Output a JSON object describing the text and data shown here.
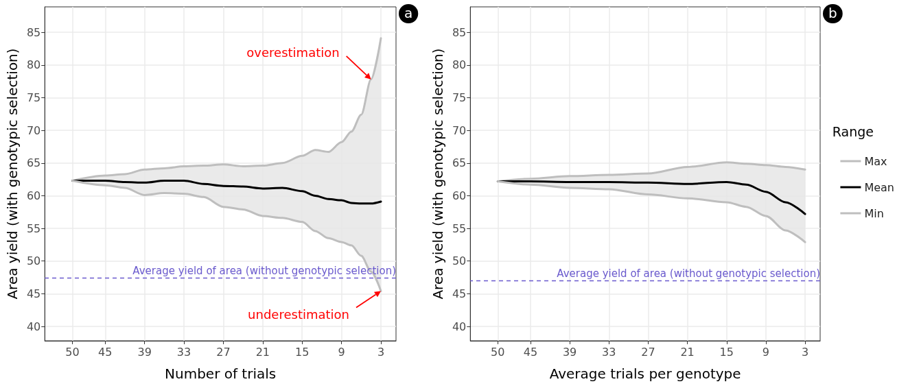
{
  "chart_data": [
    {
      "type": "line",
      "xlabel": "Number of trials",
      "ylabel": "Area yield (with genotypic selection)",
      "x": [
        50,
        45,
        42,
        39,
        36,
        33,
        30,
        27,
        24,
        21,
        18,
        15,
        13,
        11,
        9,
        7.5,
        6,
        4.5,
        3
      ],
      "series": [
        {
          "color": "#bebebe",
          "values": [
            62.3,
            63.1,
            63.3,
            64.0,
            64.2,
            64.5,
            64.6,
            64.8,
            64.5,
            64.6,
            65.0,
            66.1,
            67.0,
            66.7,
            68.2,
            69.8,
            72.4,
            77.8,
            84.1
          ]
        },
        {
          "color": "#000000",
          "values": [
            62.3,
            62.3,
            62.1,
            62.0,
            62.3,
            62.3,
            61.8,
            61.5,
            61.4,
            61.1,
            61.2,
            60.7,
            60.0,
            59.5,
            59.3,
            58.9,
            58.8,
            58.8,
            59.1
          ],
          "lower": [
            62.3,
            61.6,
            61.2,
            60.1,
            60.4,
            60.3,
            59.8,
            58.3,
            57.9,
            56.9,
            56.6,
            56.0,
            54.6,
            53.5,
            52.9,
            52.4,
            50.8,
            48.4,
            45.4
          ],
          "upper": [
            62.3,
            63.1,
            63.3,
            64.0,
            64.2,
            64.5,
            64.6,
            64.8,
            64.5,
            64.6,
            65.0,
            66.1,
            67.0,
            66.7,
            68.2,
            69.8,
            72.4,
            77.8,
            84.1
          ]
        },
        {
          "color": "#bebebe",
          "values": [
            62.3,
            61.6,
            61.2,
            60.1,
            60.4,
            60.3,
            59.8,
            58.3,
            57.9,
            56.9,
            56.6,
            56.0,
            54.6,
            53.5,
            52.9,
            52.4,
            50.8,
            48.4,
            45.4
          ]
        }
      ],
      "xlim": [
        54.2,
        0.7
      ],
      "xticks": [
        50,
        45,
        39,
        33,
        27,
        21,
        15,
        9,
        3
      ],
      "ylim": [
        37.8,
        88.9
      ],
      "yticks": [
        40,
        45,
        50,
        55,
        60,
        65,
        70,
        75,
        80,
        85
      ],
      "ref_lines": [
        {
          "axis": "y",
          "value": 47.4,
          "label": "Average yield of area (without genotypic selection)",
          "color": "#6a5acd",
          "line_style": "dashed"
        }
      ],
      "annotations": [
        "a",
        {
          "text": "overestimation",
          "x": 4.5,
          "y": 77.8
        },
        {
          "text": "underestimation",
          "x": 3,
          "y": 45.4
        }
      ],
      "grid": true,
      "legend": false,
      "marker": "none",
      "line_style": "solid"
    },
    {
      "type": "line",
      "xlabel": "Average trials per genotype",
      "ylabel": "Area yield (with genotypic selection)",
      "x": [
        50,
        45,
        39,
        33,
        27,
        21,
        15,
        12,
        9,
        6,
        3
      ],
      "series": [
        {
          "name": "Max",
          "color": "#bebebe",
          "values": [
            62.2,
            62.6,
            63.0,
            63.2,
            63.4,
            64.4,
            65.1,
            64.9,
            64.7,
            64.4,
            64.0
          ]
        },
        {
          "name": "Mean",
          "color": "#000000",
          "values": [
            62.2,
            62.2,
            62.1,
            62.1,
            62.0,
            61.8,
            62.1,
            61.7,
            60.6,
            59.0,
            57.2
          ],
          "lower": [
            62.2,
            61.7,
            61.2,
            61.0,
            60.2,
            59.6,
            59.0,
            58.3,
            56.9,
            54.7,
            52.9
          ],
          "upper": [
            62.2,
            62.6,
            63.0,
            63.2,
            63.4,
            64.4,
            65.1,
            64.9,
            64.7,
            64.4,
            64.0
          ]
        },
        {
          "name": "Min",
          "color": "#bebebe",
          "values": [
            62.2,
            61.7,
            61.2,
            61.0,
            60.2,
            59.6,
            59.0,
            58.3,
            56.9,
            54.7,
            52.9
          ]
        }
      ],
      "xlim": [
        54.2,
        0.7
      ],
      "xticks": [
        50,
        45,
        39,
        33,
        27,
        21,
        15,
        9,
        3
      ],
      "ylim": [
        37.8,
        88.9
      ],
      "yticks": [
        40,
        45,
        50,
        55,
        60,
        65,
        70,
        75,
        80,
        85
      ],
      "ref_lines": [
        {
          "axis": "y",
          "value": 47.0,
          "label": "Average yield of area (without genotypic selection)",
          "color": "#6a5acd",
          "line_style": "dashed"
        }
      ],
      "annotations": [
        "b"
      ],
      "legend_title": "Range",
      "legend": "right",
      "grid": true,
      "marker": "none",
      "line_style": "solid"
    }
  ]
}
